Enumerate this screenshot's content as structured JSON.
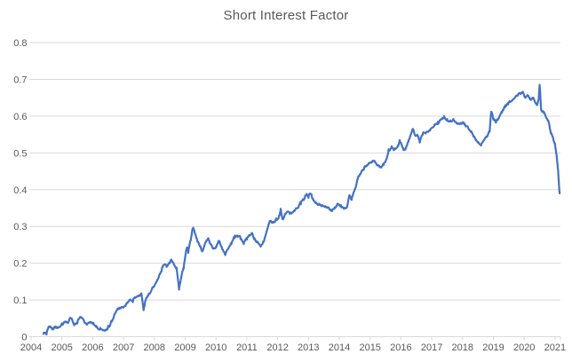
{
  "chart_data": {
    "type": "line",
    "title": "Short Interest Factor",
    "legend": "none",
    "grid": true,
    "x_range": [
      2004,
      2021.25
    ],
    "y_range": [
      0,
      0.8
    ],
    "x_ticks": [
      2004,
      2005,
      2006,
      2007,
      2008,
      2009,
      2010,
      2011,
      2012,
      2013,
      2014,
      2015,
      2016,
      2017,
      2018,
      2019,
      2020,
      2021
    ],
    "y_ticks": [
      0,
      0.1,
      0.2,
      0.3,
      0.4,
      0.5,
      0.6,
      0.7,
      0.8
    ],
    "colors": {
      "line": "#4472C4",
      "gridline": "#D9D9D9",
      "axis_line": "#D9D9D9",
      "text": "#595959",
      "background": "#FFFFFF"
    },
    "jitter": {
      "seed": 3,
      "octave1": {
        "period_years": 0.22,
        "amplitude": 0.0045
      },
      "octave2": {
        "period_years": 0.045,
        "amplitude": 0.0025
      },
      "white_amplitude": 0.0015
    },
    "series": [
      {
        "name": "Short Interest Factor",
        "points": [
          [
            2004.4,
            0.008
          ],
          [
            2004.5,
            0.006
          ],
          [
            2004.55,
            0.022
          ],
          [
            2004.62,
            0.028
          ],
          [
            2004.7,
            0.02
          ],
          [
            2004.8,
            0.028
          ],
          [
            2004.9,
            0.026
          ],
          [
            2005.0,
            0.036
          ],
          [
            2005.1,
            0.041
          ],
          [
            2005.2,
            0.037
          ],
          [
            2005.3,
            0.05
          ],
          [
            2005.4,
            0.031
          ],
          [
            2005.5,
            0.036
          ],
          [
            2005.6,
            0.053
          ],
          [
            2005.7,
            0.046
          ],
          [
            2005.8,
            0.034
          ],
          [
            2005.9,
            0.039
          ],
          [
            2006.0,
            0.035
          ],
          [
            2006.1,
            0.03
          ],
          [
            2006.25,
            0.024
          ],
          [
            2006.4,
            0.018
          ],
          [
            2006.5,
            0.03
          ],
          [
            2006.6,
            0.043
          ],
          [
            2006.7,
            0.06
          ],
          [
            2006.85,
            0.075
          ],
          [
            2007.0,
            0.08
          ],
          [
            2007.1,
            0.091
          ],
          [
            2007.2,
            0.1
          ],
          [
            2007.3,
            0.094
          ],
          [
            2007.4,
            0.108
          ],
          [
            2007.5,
            0.112
          ],
          [
            2007.58,
            0.118
          ],
          [
            2007.65,
            0.072
          ],
          [
            2007.72,
            0.1
          ],
          [
            2007.8,
            0.112
          ],
          [
            2007.9,
            0.125
          ],
          [
            2008.0,
            0.138
          ],
          [
            2008.1,
            0.155
          ],
          [
            2008.2,
            0.175
          ],
          [
            2008.3,
            0.195
          ],
          [
            2008.4,
            0.19
          ],
          [
            2008.5,
            0.2
          ],
          [
            2008.55,
            0.21
          ],
          [
            2008.65,
            0.195
          ],
          [
            2008.72,
            0.188
          ],
          [
            2008.8,
            0.128
          ],
          [
            2008.88,
            0.165
          ],
          [
            2008.95,
            0.185
          ],
          [
            2009.05,
            0.24
          ],
          [
            2009.1,
            0.228
          ],
          [
            2009.18,
            0.262
          ],
          [
            2009.25,
            0.295
          ],
          [
            2009.32,
            0.28
          ],
          [
            2009.4,
            0.258
          ],
          [
            2009.5,
            0.245
          ],
          [
            2009.55,
            0.232
          ],
          [
            2009.65,
            0.255
          ],
          [
            2009.75,
            0.268
          ],
          [
            2009.82,
            0.252
          ],
          [
            2009.9,
            0.24
          ],
          [
            2010.0,
            0.245
          ],
          [
            2010.1,
            0.26
          ],
          [
            2010.2,
            0.238
          ],
          [
            2010.3,
            0.222
          ],
          [
            2010.4,
            0.24
          ],
          [
            2010.5,
            0.252
          ],
          [
            2010.6,
            0.268
          ],
          [
            2010.7,
            0.272
          ],
          [
            2010.8,
            0.265
          ],
          [
            2010.9,
            0.252
          ],
          [
            2011.0,
            0.264
          ],
          [
            2011.1,
            0.275
          ],
          [
            2011.17,
            0.282
          ],
          [
            2011.25,
            0.268
          ],
          [
            2011.35,
            0.258
          ],
          [
            2011.45,
            0.245
          ],
          [
            2011.55,
            0.258
          ],
          [
            2011.65,
            0.288
          ],
          [
            2011.75,
            0.315
          ],
          [
            2011.85,
            0.312
          ],
          [
            2011.95,
            0.322
          ],
          [
            2012.05,
            0.33
          ],
          [
            2012.1,
            0.348
          ],
          [
            2012.16,
            0.32
          ],
          [
            2012.25,
            0.335
          ],
          [
            2012.35,
            0.34
          ],
          [
            2012.45,
            0.335
          ],
          [
            2012.55,
            0.342
          ],
          [
            2012.65,
            0.35
          ],
          [
            2012.75,
            0.36
          ],
          [
            2012.85,
            0.372
          ],
          [
            2012.92,
            0.385
          ],
          [
            2013.0,
            0.378
          ],
          [
            2013.08,
            0.388
          ],
          [
            2013.15,
            0.375
          ],
          [
            2013.25,
            0.365
          ],
          [
            2013.35,
            0.362
          ],
          [
            2013.45,
            0.358
          ],
          [
            2013.55,
            0.355
          ],
          [
            2013.65,
            0.352
          ],
          [
            2013.75,
            0.345
          ],
          [
            2013.85,
            0.352
          ],
          [
            2013.95,
            0.362
          ],
          [
            2014.05,
            0.358
          ],
          [
            2014.15,
            0.348
          ],
          [
            2014.25,
            0.352
          ],
          [
            2014.33,
            0.385
          ],
          [
            2014.4,
            0.372
          ],
          [
            2014.5,
            0.4
          ],
          [
            2014.6,
            0.43
          ],
          [
            2014.7,
            0.445
          ],
          [
            2014.8,
            0.455
          ],
          [
            2014.9,
            0.465
          ],
          [
            2015.0,
            0.474
          ],
          [
            2015.1,
            0.478
          ],
          [
            2015.2,
            0.47
          ],
          [
            2015.32,
            0.461
          ],
          [
            2015.42,
            0.47
          ],
          [
            2015.52,
            0.482
          ],
          [
            2015.6,
            0.51
          ],
          [
            2015.7,
            0.518
          ],
          [
            2015.8,
            0.512
          ],
          [
            2015.9,
            0.52
          ],
          [
            2015.96,
            0.535
          ],
          [
            2016.0,
            0.528
          ],
          [
            2016.1,
            0.51
          ],
          [
            2016.2,
            0.521
          ],
          [
            2016.3,
            0.545
          ],
          [
            2016.38,
            0.565
          ],
          [
            2016.46,
            0.548
          ],
          [
            2016.55,
            0.545
          ],
          [
            2016.61,
            0.528
          ],
          [
            2016.7,
            0.548
          ],
          [
            2016.8,
            0.553
          ],
          [
            2016.9,
            0.56
          ],
          [
            2017.0,
            0.568
          ],
          [
            2017.1,
            0.578
          ],
          [
            2017.2,
            0.585
          ],
          [
            2017.3,
            0.591
          ],
          [
            2017.4,
            0.6
          ],
          [
            2017.5,
            0.592
          ],
          [
            2017.6,
            0.588
          ],
          [
            2017.7,
            0.592
          ],
          [
            2017.8,
            0.582
          ],
          [
            2017.9,
            0.578
          ],
          [
            2018.0,
            0.58
          ],
          [
            2018.1,
            0.572
          ],
          [
            2018.2,
            0.565
          ],
          [
            2018.3,
            0.555
          ],
          [
            2018.4,
            0.54
          ],
          [
            2018.5,
            0.528
          ],
          [
            2018.6,
            0.52
          ],
          [
            2018.7,
            0.535
          ],
          [
            2018.8,
            0.545
          ],
          [
            2018.88,
            0.558
          ],
          [
            2018.93,
            0.612
          ],
          [
            2019.0,
            0.59
          ],
          [
            2019.08,
            0.582
          ],
          [
            2019.18,
            0.595
          ],
          [
            2019.28,
            0.61
          ],
          [
            2019.38,
            0.624
          ],
          [
            2019.48,
            0.632
          ],
          [
            2019.58,
            0.64
          ],
          [
            2019.68,
            0.648
          ],
          [
            2019.78,
            0.655
          ],
          [
            2019.88,
            0.66
          ],
          [
            2019.96,
            0.666
          ],
          [
            2020.04,
            0.65
          ],
          [
            2020.12,
            0.656
          ],
          [
            2020.2,
            0.645
          ],
          [
            2020.28,
            0.65
          ],
          [
            2020.35,
            0.638
          ],
          [
            2020.42,
            0.63
          ],
          [
            2020.47,
            0.646
          ],
          [
            2020.5,
            0.685
          ],
          [
            2020.55,
            0.618
          ],
          [
            2020.62,
            0.61
          ],
          [
            2020.7,
            0.598
          ],
          [
            2020.78,
            0.588
          ],
          [
            2020.85,
            0.56
          ],
          [
            2020.92,
            0.545
          ],
          [
            2021.0,
            0.525
          ],
          [
            2021.05,
            0.495
          ],
          [
            2021.1,
            0.452
          ],
          [
            2021.15,
            0.39
          ]
        ]
      }
    ]
  }
}
